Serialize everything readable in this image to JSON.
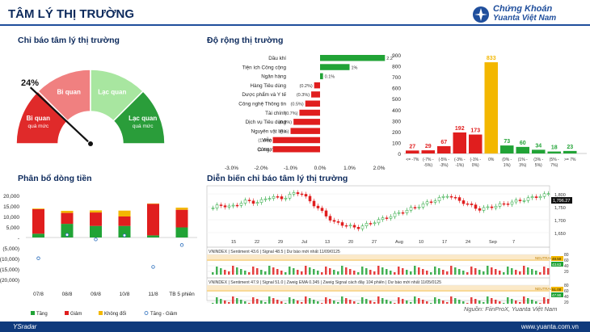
{
  "header": {
    "title": "TÂM LÝ THỊ TRƯỜNG",
    "logo_line1": "Chứng Khoán",
    "logo_line2": "Yuanta Việt Nam"
  },
  "colors": {
    "brand": "#1f4e9c",
    "gain": "#21a336",
    "loss": "#e01e1e",
    "flat": "#f3b700",
    "gauge_red": "#e02a2a",
    "gauge_pink": "#f08080",
    "gauge_lgreen": "#a8e6a0",
    "gauge_dgreen": "#2a9d3a"
  },
  "gauge": {
    "section_title": "Chỉ báo tâm lý thị trường",
    "value_label": "24%",
    "value_fraction": 0.24,
    "zones": [
      {
        "label_line1": "Bi quan",
        "label_line2": "quá mức"
      },
      {
        "label_line1": "Bi quan",
        "label_line2": ""
      },
      {
        "label_line1": "Lạc quan",
        "label_line2": ""
      },
      {
        "label_line1": "Lạc quan",
        "label_line2": "quá mức"
      }
    ]
  },
  "breadth": {
    "section_title": "Độ rộng thị trường",
    "sectors": [
      {
        "name": "Dầu khí",
        "value": 2.2,
        "label": "2.2%"
      },
      {
        "name": "Tiện ích Công cộng",
        "value": 1.0,
        "label": "1%"
      },
      {
        "name": "Ngân hàng",
        "value": 0.1,
        "label": "0.1%"
      },
      {
        "name": "Hàng Tiêu dùng",
        "value": -0.2,
        "label": "(0.2%)"
      },
      {
        "name": "Dược phẩm và Y tế",
        "value": -0.3,
        "label": "(0.3%)"
      },
      {
        "name": "Công nghệ Thông tin",
        "value": -0.5,
        "label": "(0.5%)"
      },
      {
        "name": "Tài chính",
        "value": -0.7,
        "label": "(0.7%)"
      },
      {
        "name": "Dịch vụ Tiêu dùng",
        "value": -0.9,
        "label": "(0.9%)"
      },
      {
        "name": "Nguyên vật liệu",
        "value": -1.0,
        "label": "(1%)"
      },
      {
        "name": "Viễn thông",
        "value": -1.6,
        "label": "(1.6%)"
      },
      {
        "name": "Công nghiệp",
        "value": -1.6,
        "label": "(1.6%)"
      }
    ],
    "ticks": [
      "-3.0%",
      "-2.0%",
      "-1.0%",
      "0.0%",
      "1.0%",
      "2.0%",
      "3.0%"
    ]
  },
  "histogram": {
    "y_ticks": [
      "900",
      "800",
      "700",
      "600",
      "500",
      "400",
      "300",
      "200",
      "100",
      "0"
    ],
    "bins": [
      {
        "label": "<= -7%",
        "label2": "",
        "value": 27,
        "color": "#e01e1e"
      },
      {
        "label": "(-7% -",
        "label2": "-5%)",
        "value": 29,
        "color": "#e01e1e"
      },
      {
        "label": "(-5% -",
        "label2": "-3%)",
        "value": 67,
        "color": "#e01e1e"
      },
      {
        "label": "(-3% -",
        "label2": "-1%)",
        "value": 192,
        "color": "#e01e1e"
      },
      {
        "label": "(-1% -",
        "label2": "0%)",
        "value": 173,
        "color": "#e01e1e"
      },
      {
        "label": "0%",
        "label2": "",
        "value": 833,
        "color": "#f3b700"
      },
      {
        "label": "(0% -",
        "label2": "1%)",
        "value": 73,
        "color": "#21a336"
      },
      {
        "label": "(1% -",
        "label2": "3%)",
        "value": 60,
        "color": "#21a336"
      },
      {
        "label": "(3% -",
        "label2": "5%)",
        "value": 34,
        "color": "#21a336"
      },
      {
        "label": "(5% -",
        "label2": "7%)",
        "value": 18,
        "color": "#21a336"
      },
      {
        "label": ">= 7%",
        "label2": "",
        "value": 23,
        "color": "#21a336"
      }
    ]
  },
  "flow": {
    "section_title": "Phân bổ dòng tiền",
    "y_ticks": [
      "20,000",
      "15,000",
      "10,000",
      "5,000",
      "-",
      "(5,000)",
      "(10,000)",
      "(15,000)",
      "(20,000)"
    ],
    "categories": [
      "07/8",
      "08/8",
      "09/8",
      "10/8",
      "11/8",
      "TB 5 phiên"
    ],
    "series": [
      {
        "name": "Tăng",
        "color": "#21a336",
        "values": [
          1800,
          6500,
          5500,
          5500,
          1000,
          4800
        ]
      },
      {
        "name": "Giảm",
        "color": "#e01e1e",
        "values": [
          11700,
          5200,
          6400,
          4500,
          15000,
          8400
        ]
      },
      {
        "name": "Không đổi",
        "color": "#f3b700",
        "values": [
          300,
          1000,
          1000,
          2800,
          200,
          1000
        ]
      }
    ],
    "diff_name": "Tăng - Giảm",
    "diff_values": [
      -9900,
      1300,
      -900,
      1000,
      -14000,
      -3600
    ]
  },
  "evolution": {
    "section_title": "Diễn biến chỉ báo tâm lý thị trường",
    "price_ticks": [
      "1,800",
      "1,750",
      "1,700",
      "1,650"
    ],
    "price_last": "1,796.27",
    "date_ticks": [
      "15",
      "22",
      "29",
      "Jul",
      "13",
      "20",
      "27",
      "Aug",
      "10",
      "17",
      "24",
      "Sep",
      "7"
    ],
    "panel1_info": "VNINDEX | Sentiment 43.6 | Signal 48.5 | Dư báo mới nhất 11/09/0125",
    "panel2_info": "VNINDEX | Sentiment 47.9 | Signal 51.0 | Zweig EMA 0.345 | Zweig Signal cách đây 104 phiên | Dư báo mới nhất 11/05/0125",
    "p1_ticks": [
      "80",
      "60",
      "40",
      "20"
    ],
    "p1_values": [
      "48.50",
      "43.63"
    ],
    "p1_neutral": "NEUTRAL",
    "p2_ticks": [
      "80",
      "60",
      "40",
      "20"
    ],
    "p2_values": [
      "51.00",
      "47.90"
    ],
    "p2_neutral": "NEUTRAL"
  },
  "footer": {
    "source": "Nguồn: FiinProX, Yuanta Việt Nam",
    "brand": "YSradar",
    "url": "www.yuanta.com.vn"
  }
}
